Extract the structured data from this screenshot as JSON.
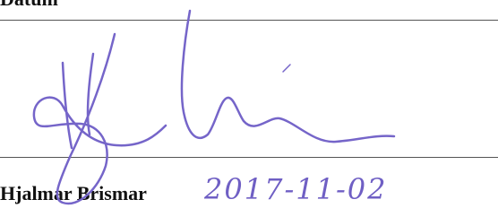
{
  "header": {
    "label": "Datum"
  },
  "signer": {
    "name": "Hjalmar Brismar"
  },
  "date": "2017-11-02"
}
